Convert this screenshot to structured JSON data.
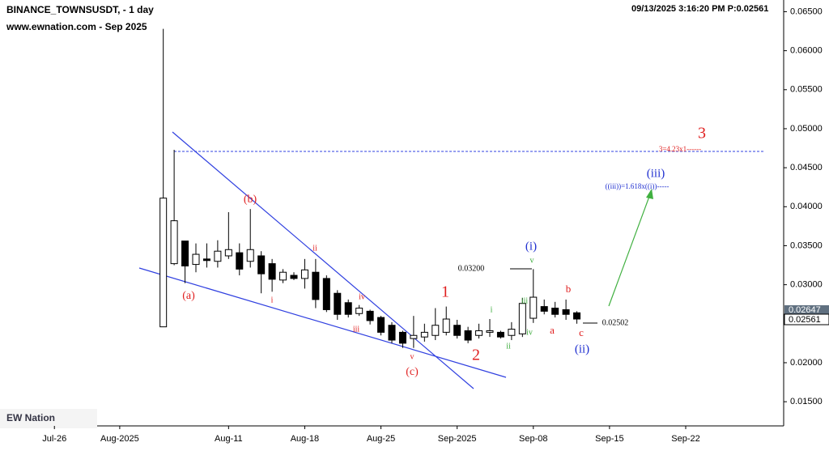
{
  "chart_data": {
    "type": "candlestick",
    "title": "BINANCE_TOWNSUSDT, - 1 day",
    "subtitle": "www.ewnation.com  - Sep 2025",
    "timestamp": "09/13/2025 3:16:20 PM  P:0.02561",
    "logo": "EW Nation",
    "price_tags": [
      "0.02647",
      "0.02561"
    ],
    "xlim": [
      "2025-07-21",
      "2025-10-01"
    ],
    "xticks": [
      {
        "value": "2025-07-26",
        "label": "Jul-26"
      },
      {
        "value": "2025-08-01",
        "label": "Aug-2025"
      },
      {
        "value": "2025-08-11",
        "label": "Aug-11"
      },
      {
        "value": "2025-08-18",
        "label": "Aug-18"
      },
      {
        "value": "2025-08-25",
        "label": "Aug-25"
      },
      {
        "value": "2025-09-01",
        "label": "Sep-2025"
      },
      {
        "value": "2025-09-08",
        "label": "Sep-08"
      },
      {
        "value": "2025-09-15",
        "label": "Sep-15"
      },
      {
        "value": "2025-09-22",
        "label": "Sep-22"
      }
    ],
    "ylim": [
      0.0119,
      0.0665
    ],
    "yticks": [
      {
        "value": 0.065,
        "label": "0.06500"
      },
      {
        "value": 0.06,
        "label": "0.06000"
      },
      {
        "value": 0.055,
        "label": "0.05500"
      },
      {
        "value": 0.05,
        "label": "0.05000"
      },
      {
        "value": 0.045,
        "label": "0.04500"
      },
      {
        "value": 0.04,
        "label": "0.04000"
      },
      {
        "value": 0.035,
        "label": "0.03500"
      },
      {
        "value": 0.03,
        "label": "0.03000"
      },
      {
        "value": 0.02,
        "label": "0.02000"
      },
      {
        "value": 0.015,
        "label": "0.01500"
      }
    ],
    "x": [
      "2025-08-05",
      "2025-08-06",
      "2025-08-07",
      "2025-08-08",
      "2025-08-09",
      "2025-08-10",
      "2025-08-11",
      "2025-08-12",
      "2025-08-13",
      "2025-08-14",
      "2025-08-15",
      "2025-08-16",
      "2025-08-17",
      "2025-08-18",
      "2025-08-19",
      "2025-08-20",
      "2025-08-21",
      "2025-08-22",
      "2025-08-23",
      "2025-08-24",
      "2025-08-25",
      "2025-08-26",
      "2025-08-27",
      "2025-08-28",
      "2025-08-29",
      "2025-08-30",
      "2025-08-31",
      "2025-09-01",
      "2025-09-02",
      "2025-09-03",
      "2025-09-04",
      "2025-09-05",
      "2025-09-06",
      "2025-09-07",
      "2025-09-08",
      "2025-09-09",
      "2025-09-10",
      "2025-09-11",
      "2025-09-12"
    ],
    "open": [
      0.0246,
      0.0327,
      0.0356,
      0.0326,
      0.0333,
      0.033,
      0.0337,
      0.0341,
      0.033,
      0.0337,
      0.0327,
      0.0306,
      0.0312,
      0.0308,
      0.0316,
      0.0308,
      0.0289,
      0.0277,
      0.0263,
      0.0266,
      0.0258,
      0.0248,
      0.0239,
      0.0231,
      0.0233,
      0.0235,
      0.0239,
      0.0248,
      0.0241,
      0.0235,
      0.0239,
      0.0239,
      0.0235,
      0.0237,
      0.0257,
      0.0272,
      0.027,
      0.0268,
      0.0264
    ],
    "high": [
      0.0628,
      0.0473,
      0.0356,
      0.0353,
      0.0353,
      0.0357,
      0.0393,
      0.0353,
      0.0397,
      0.0343,
      0.0333,
      0.032,
      0.0316,
      0.0333,
      0.0333,
      0.0312,
      0.0293,
      0.0281,
      0.0274,
      0.0268,
      0.026,
      0.0252,
      0.0241,
      0.026,
      0.025,
      0.027,
      0.0272,
      0.0255,
      0.0246,
      0.025,
      0.0256,
      0.0241,
      0.0252,
      0.0283,
      0.032,
      0.0281,
      0.0278,
      0.0281,
      0.0266
    ],
    "low": [
      0.0246,
      0.0325,
      0.0302,
      0.0316,
      0.0322,
      0.0322,
      0.0333,
      0.0312,
      0.0322,
      0.0289,
      0.0291,
      0.0302,
      0.0306,
      0.0295,
      0.027,
      0.0265,
      0.0255,
      0.0258,
      0.026,
      0.0249,
      0.0235,
      0.0225,
      0.0219,
      0.0219,
      0.0227,
      0.0229,
      0.0235,
      0.0231,
      0.0225,
      0.0231,
      0.0233,
      0.0231,
      0.0229,
      0.0233,
      0.0251,
      0.0262,
      0.0258,
      0.0255,
      0.025
    ],
    "close": [
      0.0411,
      0.0382,
      0.0324,
      0.0339,
      0.0331,
      0.0343,
      0.0345,
      0.032,
      0.0345,
      0.0314,
      0.0307,
      0.0316,
      0.0308,
      0.0319,
      0.0281,
      0.0268,
      0.0262,
      0.0262,
      0.027,
      0.0254,
      0.0239,
      0.0229,
      0.0225,
      0.0235,
      0.0239,
      0.0248,
      0.0256,
      0.0235,
      0.0229,
      0.0241,
      0.0241,
      0.0233,
      0.0243,
      0.0276,
      0.0284,
      0.0266,
      0.0262,
      0.0262,
      0.0256
    ],
    "annotations": [
      {
        "text": "(a)",
        "color": "#e02020"
      },
      {
        "text": "(b)",
        "color": "#e02020"
      },
      {
        "text": "ii",
        "color": "#e02020"
      },
      {
        "text": "i",
        "color": "#e02020"
      },
      {
        "text": "iii",
        "color": "#e02020"
      },
      {
        "text": "iv",
        "color": "#e02020"
      },
      {
        "text": "v",
        "color": "#e02020"
      },
      {
        "text": "(c)",
        "color": "#e02020"
      },
      {
        "text": "1",
        "color": "#e02020"
      },
      {
        "text": "2",
        "color": "#e02020"
      },
      {
        "text": "i",
        "color": "#3aaa3a"
      },
      {
        "text": "ii",
        "color": "#3aaa3a"
      },
      {
        "text": "iii",
        "color": "#3aaa3a"
      },
      {
        "text": "iv",
        "color": "#3aaa3a"
      },
      {
        "text": "v",
        "color": "#3aaa3a"
      },
      {
        "text": "(i)",
        "color": "#2030d0"
      },
      {
        "text": "(ii)",
        "color": "#2030d0"
      },
      {
        "text": "a",
        "color": "#e02020"
      },
      {
        "text": "b",
        "color": "#e02020"
      },
      {
        "text": "c",
        "color": "#e02020"
      },
      {
        "text": "3",
        "color": "#e02020"
      },
      {
        "text": "(iii)",
        "color": "#2030d0"
      },
      {
        "text": "((iii))=1.618x((i))-----",
        "color": "#2030d0"
      },
      {
        "text": "3=4.23x1------",
        "color": "#e02020"
      },
      {
        "text": "0.03200",
        "color": "#000000"
      },
      {
        "text": "0.02502",
        "color": "#000000"
      }
    ]
  }
}
